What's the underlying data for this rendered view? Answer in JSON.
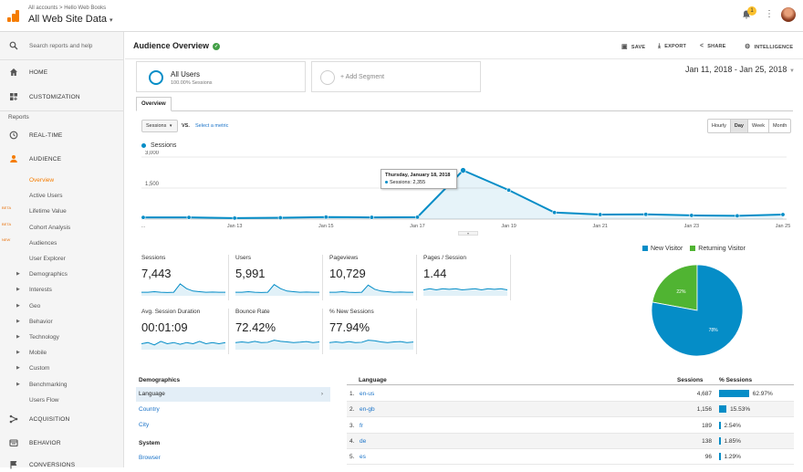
{
  "header": {
    "breadcrumb": "All accounts > Hello Web Books",
    "account_view": "All Web Site Data",
    "notification_count": "1"
  },
  "sidebar": {
    "search_placeholder": "Search reports and help",
    "home": "HOME",
    "customization": "CUSTOMIZATION",
    "reports_heading": "Reports",
    "realtime": "REAL-TIME",
    "audience": "AUDIENCE",
    "audience_items": [
      {
        "label": "Overview"
      },
      {
        "label": "Active Users"
      },
      {
        "label": "Lifetime Value",
        "tag": "BETA"
      },
      {
        "label": "Cohort Analysis",
        "tag": "BETA"
      },
      {
        "label": "Audiences",
        "tag": "NEW"
      },
      {
        "label": "User Explorer"
      },
      {
        "label": "Demographics"
      },
      {
        "label": "Interests"
      },
      {
        "label": "Geo"
      },
      {
        "label": "Behavior"
      },
      {
        "label": "Technology"
      },
      {
        "label": "Mobile"
      },
      {
        "label": "Custom"
      },
      {
        "label": "Benchmarking"
      },
      {
        "label": "Users Flow"
      }
    ],
    "acquisition": "ACQUISITION",
    "behavior": "BEHAVIOR",
    "conversions": "CONVERSIONS"
  },
  "toolbar": {
    "title": "Audience Overview",
    "save": "SAVE",
    "export": "EXPORT",
    "share": "SHARE",
    "intelligence": "INTELLIGENCE"
  },
  "segments": {
    "active_name": "All Users",
    "active_pct": "100.00% Sessions",
    "add": "+ Add Segment"
  },
  "date_range": "Jan 11, 2018 - Jan 25, 2018",
  "tab": "Overview",
  "controls": {
    "metric": "Sessions",
    "vs": "VS.",
    "select_metric": "Select a metric",
    "granularity": [
      "Hourly",
      "Day",
      "Week",
      "Month"
    ],
    "active_granularity": "Day"
  },
  "chart_data": {
    "type": "line",
    "series": [
      {
        "name": "Sessions",
        "values": [
          80,
          80,
          50,
          65,
          100,
          85,
          95,
          2355,
          1400,
          320,
          220,
          230,
          180,
          160,
          220
        ]
      }
    ],
    "x": [
      "Jan 11",
      "Jan 12",
      "Jan 13",
      "Jan 14",
      "Jan 15",
      "Jan 16",
      "Jan 17",
      "Jan 18",
      "Jan 19",
      "Jan 20",
      "Jan 21",
      "Jan 22",
      "Jan 23",
      "Jan 24",
      "Jan 25"
    ],
    "xticks": [
      "...",
      "Jan 13",
      "Jan 15",
      "Jan 17",
      "Jan 19",
      "Jan 21",
      "Jan 23",
      "Jan 25"
    ],
    "yticks": [
      "3,000",
      "1,500"
    ],
    "ylim": [
      0,
      3000
    ],
    "color": "#058dc7",
    "tooltip": {
      "date": "Thursday, January 18, 2018",
      "label": "Sessions: 2,355"
    }
  },
  "metrics": [
    {
      "label": "Sessions",
      "value": "7,443"
    },
    {
      "label": "Users",
      "value": "5,991"
    },
    {
      "label": "Pageviews",
      "value": "10,729"
    },
    {
      "label": "Pages / Session",
      "value": "1.44"
    },
    {
      "label": "Avg. Session Duration",
      "value": "00:01:09"
    },
    {
      "label": "Bounce Rate",
      "value": "72.42%"
    },
    {
      "label": "% New Sessions",
      "value": "77.94%"
    }
  ],
  "pie": {
    "legend": [
      "New Visitor",
      "Returning Visitor"
    ],
    "slices": [
      {
        "name": "New Visitor",
        "pct": 77.9,
        "label": "78%",
        "color": "#058dc7"
      },
      {
        "name": "Returning Visitor",
        "pct": 22.1,
        "label": "22%",
        "color": "#50b432"
      }
    ]
  },
  "demographics": {
    "heading": "Demographics",
    "items": [
      "Language",
      "Country",
      "City"
    ],
    "system_heading": "System",
    "system_items": [
      "Browser"
    ]
  },
  "language_table": {
    "col_language": "Language",
    "col_sessions": "Sessions",
    "col_pct": "% Sessions",
    "rows": [
      {
        "idx": "1.",
        "lang": "en-us",
        "sessions": "4,687",
        "pct": "62.97%",
        "frac": 0.6297
      },
      {
        "idx": "2.",
        "lang": "en-gb",
        "sessions": "1,156",
        "pct": "15.53%",
        "frac": 0.1553
      },
      {
        "idx": "3.",
        "lang": "fr",
        "sessions": "189",
        "pct": "2.54%",
        "frac": 0.0254
      },
      {
        "idx": "4.",
        "lang": "de",
        "sessions": "138",
        "pct": "1.85%",
        "frac": 0.0185
      },
      {
        "idx": "5.",
        "lang": "es",
        "sessions": "96",
        "pct": "1.29%",
        "frac": 0.0129
      }
    ]
  }
}
